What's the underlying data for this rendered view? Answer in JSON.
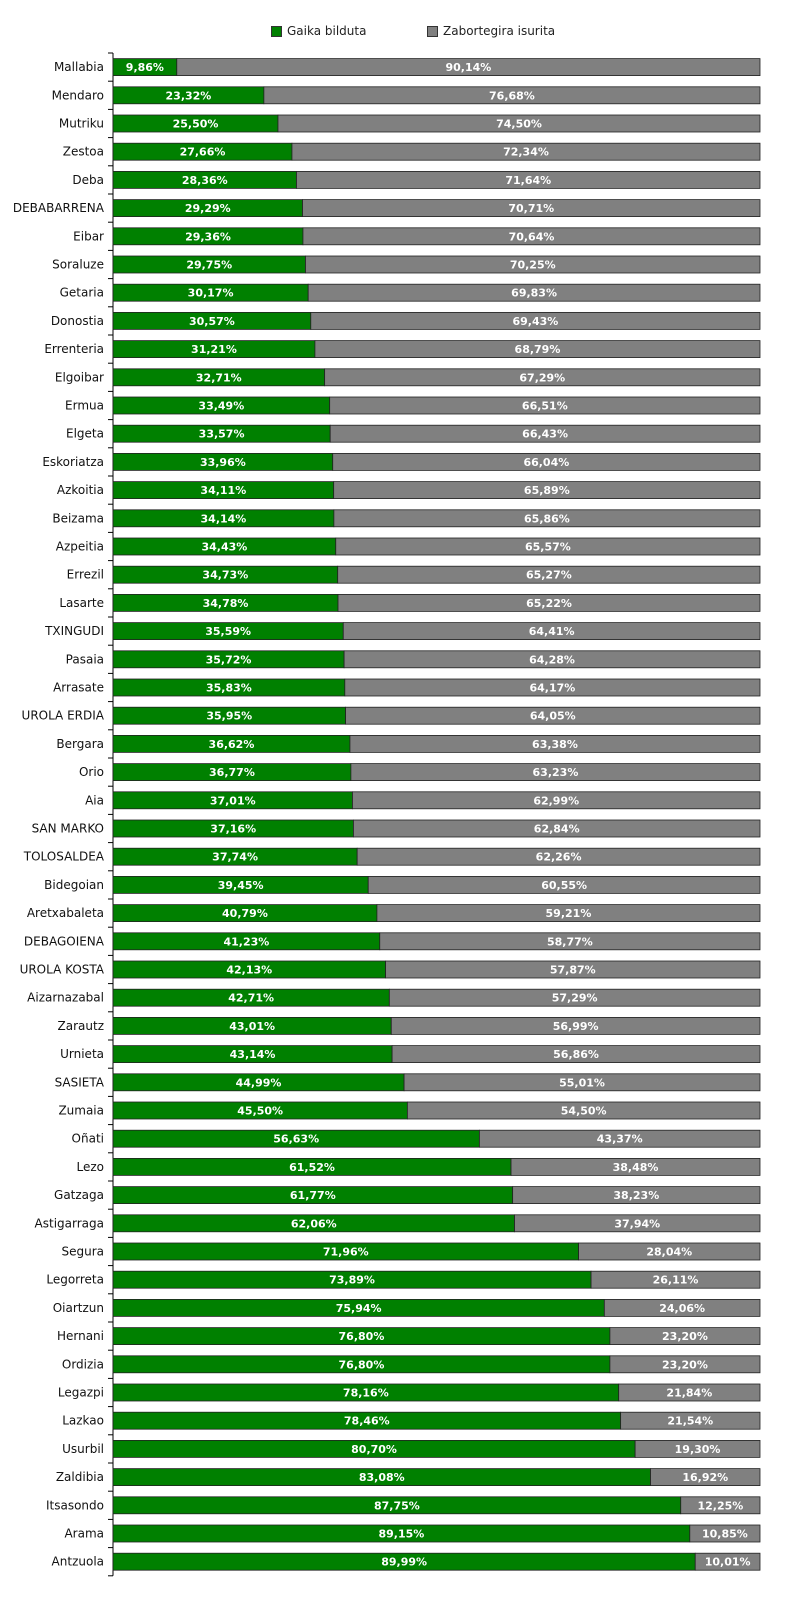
{
  "chart_data": {
    "type": "bar",
    "orientation": "horizontal",
    "stacked": "percent",
    "title": "",
    "xlabel": "",
    "ylabel": "",
    "xlim": [
      0,
      100
    ],
    "legend_position": "top",
    "categories": [
      "Mallabia",
      "Mendaro",
      "Mutriku",
      "Zestoa",
      "Deba",
      "DEBABARRENA",
      "Eibar",
      "Soraluze",
      "Getaria",
      "Donostia",
      "Errenteria",
      "Elgoibar",
      "Ermua",
      "Elgeta",
      "Eskoriatza",
      "Azkoitia",
      "Beizama",
      "Azpeitia",
      "Errezil",
      "Lasarte",
      "TXINGUDI",
      "Pasaia",
      "Arrasate",
      "UROLA ERDIA",
      "Bergara",
      "Orio",
      "Aia",
      "SAN MARKO",
      "TOLOSALDEA",
      "Bidegoian",
      "Aretxabaleta",
      "DEBAGOIENA",
      "UROLA KOSTA",
      "Aizarnazabal",
      "Zarautz",
      "Urnieta",
      "SASIETA",
      "Zumaia",
      "Oñati",
      "Lezo",
      "Gatzaga",
      "Astigarraga",
      "Segura",
      "Legorreta",
      "Oiartzun",
      "Hernani",
      "Ordizia",
      "Legazpi",
      "Lazkao",
      "Usurbil",
      "Zaldibia",
      "Itsasondo",
      "Arama",
      "Antzuola"
    ],
    "series": [
      {
        "name": "Gaika bilduta",
        "color": "#008000",
        "values": [
          9.86,
          23.32,
          25.5,
          27.66,
          28.36,
          29.29,
          29.36,
          29.75,
          30.17,
          30.57,
          31.21,
          32.71,
          33.49,
          33.57,
          33.96,
          34.11,
          34.14,
          34.43,
          34.73,
          34.78,
          35.59,
          35.72,
          35.83,
          35.95,
          36.62,
          36.77,
          37.01,
          37.16,
          37.74,
          39.45,
          40.79,
          41.23,
          42.13,
          42.71,
          43.01,
          43.14,
          44.99,
          45.5,
          56.63,
          61.52,
          61.77,
          62.06,
          71.96,
          73.89,
          75.94,
          76.8,
          76.8,
          78.16,
          78.46,
          80.7,
          83.08,
          87.75,
          89.15,
          89.99
        ]
      },
      {
        "name": "Zabortegira isurita",
        "color": "#808080",
        "values": [
          90.14,
          76.68,
          74.5,
          72.34,
          71.64,
          70.71,
          70.64,
          70.25,
          69.83,
          69.43,
          68.79,
          67.29,
          66.51,
          66.43,
          66.04,
          65.89,
          65.86,
          65.57,
          65.27,
          65.22,
          64.41,
          64.28,
          64.17,
          64.05,
          63.38,
          63.23,
          62.99,
          62.84,
          62.26,
          60.55,
          59.21,
          58.77,
          57.87,
          57.29,
          56.99,
          56.86,
          55.01,
          54.5,
          43.37,
          38.48,
          38.23,
          37.94,
          28.04,
          26.11,
          24.06,
          23.2,
          23.2,
          21.84,
          21.54,
          19.3,
          16.92,
          12.25,
          10.85,
          10.01
        ]
      }
    ]
  }
}
